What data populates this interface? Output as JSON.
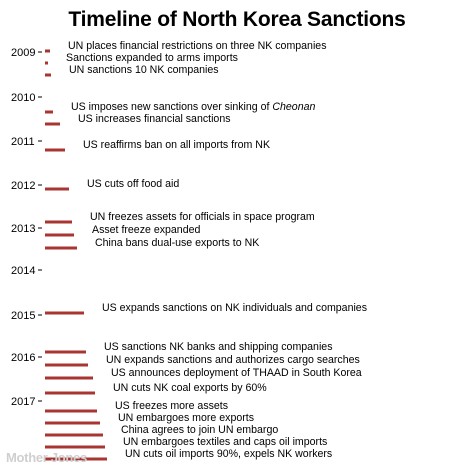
{
  "chart_data": {
    "type": "timeline",
    "title": "Timeline of North Korea Sanctions",
    "year_range": [
      2009,
      2017
    ],
    "year_ticks": [
      "2009",
      "2010",
      "2011",
      "2012",
      "2013",
      "2014",
      "2015",
      "2016",
      "2017"
    ],
    "bar_color": "#a93532",
    "events": [
      {
        "row": 0,
        "text": "UN places financial restrictions on three NK companies"
      },
      {
        "row": 1,
        "text": "Sanctions expanded to arms imports"
      },
      {
        "row": 2,
        "text": "UN sanctions 10 NK companies"
      },
      {
        "row": 3,
        "text_pre": "US imposes new sanctions over sinking of ",
        "text_italic": "Cheonan"
      },
      {
        "row": 4,
        "text": "US increases financial sanctions"
      },
      {
        "row": 5,
        "text": "US reaffirms ban on all imports from NK"
      },
      {
        "row": 6,
        "text": "US cuts off food aid"
      },
      {
        "row": 7,
        "text": "UN freezes assets for officials in space program"
      },
      {
        "row": 8,
        "text": "Asset freeze expanded"
      },
      {
        "row": 9,
        "text": "China bans dual-use exports to NK"
      },
      {
        "row": 10,
        "text": "US expands sanctions on NK individuals and companies"
      },
      {
        "row": 11,
        "text": "US sanctions NK banks and shipping companies"
      },
      {
        "row": 12,
        "text": "UN expands sanctions and authorizes cargo searches"
      },
      {
        "row": 13,
        "text": "US announces deployment of THAAD in South Korea"
      },
      {
        "row": 14,
        "text": "UN cuts NK coal exports by 60%"
      },
      {
        "row": 15,
        "text": "US freezes more assets"
      },
      {
        "row": 16,
        "text": "UN embargoes more exports"
      },
      {
        "row": 17,
        "text": "China agrees to join UN embargo"
      },
      {
        "row": 18,
        "text": "UN embargoes textiles and caps oil imports"
      },
      {
        "row": 19,
        "text": "UN cuts oil imports 90%, expels NK workers"
      }
    ]
  },
  "credit": "Mother Jones"
}
